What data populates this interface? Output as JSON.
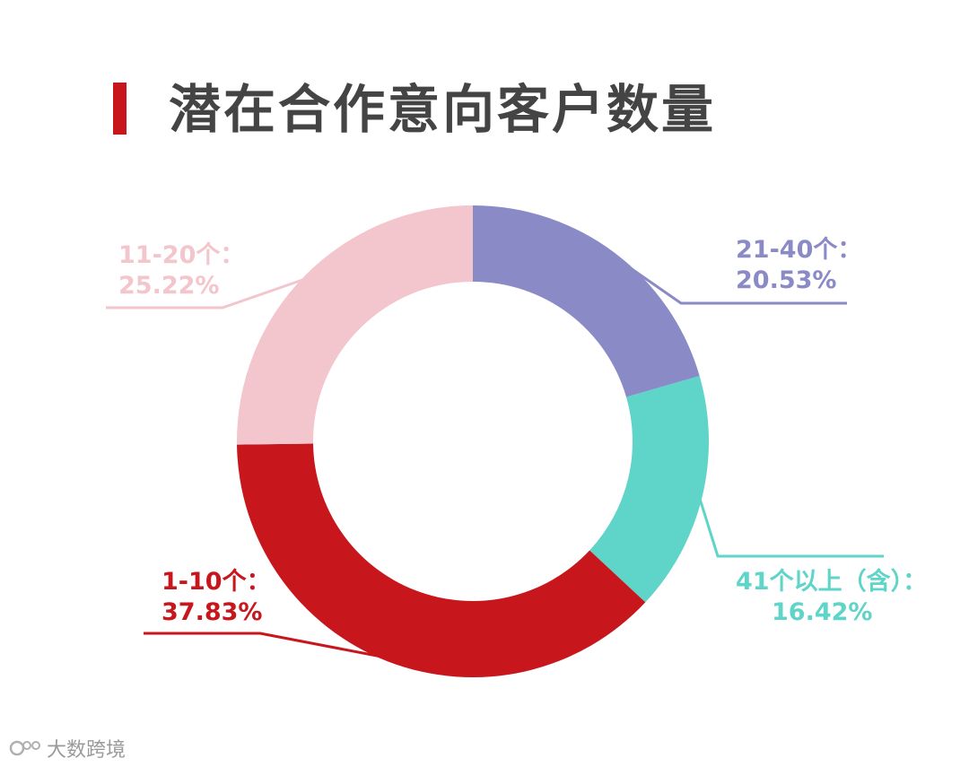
{
  "title": "潜在合作意向客户数量",
  "accent_color": "#c8161d",
  "watermark": {
    "text": "大数跨境",
    "icon": "brand-logo-icon"
  },
  "chart_data": {
    "type": "pie",
    "donut": true,
    "title": "潜在合作意向客户数量",
    "slices": [
      {
        "label": "21-40个：",
        "value": 20.53,
        "value_text": "20.53%",
        "color": "#8a8ac6"
      },
      {
        "label": "41个以上（含）：",
        "value": 16.42,
        "value_text": "16.42%",
        "color": "#5fd4c8"
      },
      {
        "label": "1-10个：",
        "value": 37.83,
        "value_text": "37.83%",
        "color": "#c8161d"
      },
      {
        "label": "11-20个：",
        "value": 25.22,
        "value_text": "25.22%",
        "color": "#f2c6cc"
      }
    ]
  }
}
